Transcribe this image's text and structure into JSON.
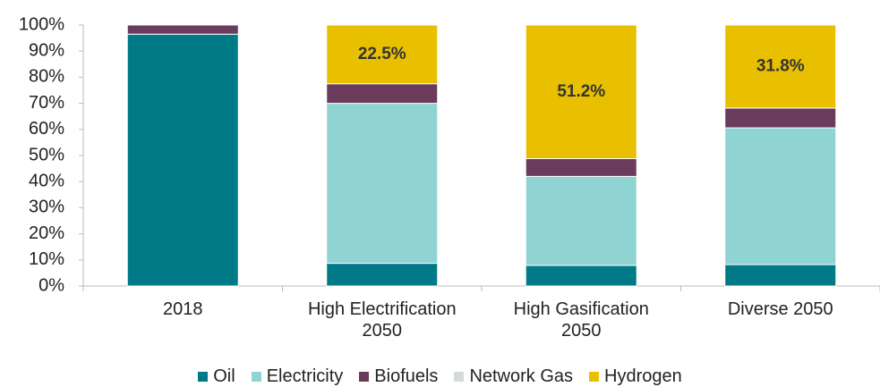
{
  "chart_data": {
    "type": "stacked_bar",
    "categories": [
      "2018",
      "High Electrification 2050",
      "High Gasification 2050",
      "Diverse 2050"
    ],
    "series": [
      {
        "name": "Oil",
        "color": "#007a87",
        "values": [
          96.5,
          8.7,
          7.9,
          8.2
        ]
      },
      {
        "name": "Electricity",
        "color": "#8fd3d3",
        "values": [
          0,
          61.3,
          34.1,
          52.4
        ]
      },
      {
        "name": "Biofuels",
        "color": "#6a3b5a",
        "values": [
          3.5,
          7.5,
          6.8,
          7.6
        ]
      },
      {
        "name": "Network Gas",
        "color": "#d5dcd6",
        "values": [
          0,
          0,
          0,
          0
        ]
      },
      {
        "name": "Hydrogen",
        "color": "#e8c000",
        "values": [
          0,
          22.5,
          51.2,
          31.8
        ],
        "value_labels": [
          null,
          "22.5%",
          "51.2%",
          "31.8%"
        ]
      }
    ],
    "ylim": [
      0,
      100
    ],
    "yticks": [
      {
        "value": 0,
        "label": "0%"
      },
      {
        "value": 10,
        "label": "10%"
      },
      {
        "value": 20,
        "label": "20%"
      },
      {
        "value": 30,
        "label": "30%"
      },
      {
        "value": 40,
        "label": "40%"
      },
      {
        "value": 50,
        "label": "50%"
      },
      {
        "value": 60,
        "label": "60%"
      },
      {
        "value": 70,
        "label": "70%"
      },
      {
        "value": 80,
        "label": "80%"
      },
      {
        "value": 90,
        "label": "90%"
      },
      {
        "value": 100,
        "label": "100%"
      }
    ],
    "legend": "bottom"
  }
}
